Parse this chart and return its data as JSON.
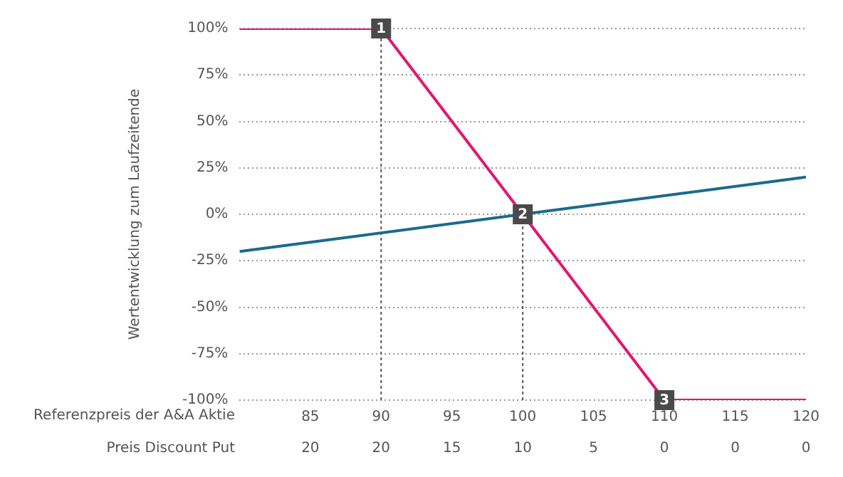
{
  "chart_data": {
    "type": "line",
    "ylabel": "Wertentwicklung zum Laufzeitende",
    "xlabel": "Referenzpreis der A&A Aktie",
    "series": [
      {
        "color": "#e2166f",
        "x": [
          80,
          90,
          110,
          120
        ],
        "values": [
          100,
          100,
          -100,
          -100
        ]
      },
      {
        "color": "#1c6a8c",
        "x": [
          80,
          120
        ],
        "values": [
          -20,
          20
        ]
      }
    ],
    "xlim": [
      80,
      120
    ],
    "xticks": [
      85,
      90,
      95,
      100,
      105,
      110,
      115,
      120
    ],
    "ylim": [
      -100,
      100
    ],
    "yticks": [
      {
        "value": -100,
        "label": "-100%"
      },
      {
        "value": -75,
        "label": "-75%"
      },
      {
        "value": -50,
        "label": "-50%"
      },
      {
        "value": -25,
        "label": "-25%"
      },
      {
        "value": 0,
        "label": "0%"
      },
      {
        "value": 25,
        "label": "25%"
      },
      {
        "value": 50,
        "label": "50%"
      },
      {
        "value": 75,
        "label": "75%"
      },
      {
        "value": 100,
        "label": "100%"
      }
    ],
    "grid": "y",
    "legend": false,
    "line_style": "solid",
    "ref_lines": [
      {
        "axis": "x",
        "value": 90,
        "line_style": "dotted",
        "color": "#555555"
      },
      {
        "axis": "x",
        "value": 100,
        "line_style": "dotted",
        "color": "#555555"
      }
    ],
    "annotations": [
      {
        "text": "1",
        "x": 90,
        "y": 100
      },
      {
        "text": "2",
        "x": 100,
        "y": 0
      },
      {
        "text": "3",
        "x": 110,
        "y": -100
      },
      "Preis Discount Put",
      "20",
      "20",
      "15",
      "10",
      "5",
      "0",
      "0",
      "0"
    ]
  }
}
